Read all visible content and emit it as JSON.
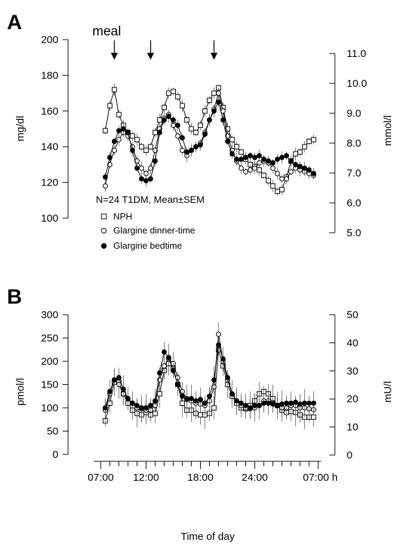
{
  "panels": {
    "a_letter": "A",
    "b_letter": "B"
  },
  "meal_label": "meal",
  "meal_times_h": [
    8.5,
    12.5,
    19.5
  ],
  "legend": {
    "note": "N=24 T1DM,  Mean±SEM",
    "items": [
      {
        "label": "NPH",
        "marker": "open-square"
      },
      {
        "label": "Glargine dinner-time",
        "marker": "open-circle"
      },
      {
        "label": "Glargine bedtime",
        "marker": "filled-circle"
      }
    ]
  },
  "x_axis": {
    "title": "Time of day",
    "range_h": [
      7,
      31
    ],
    "tick_labels": [
      "07:00",
      "12:00",
      "18:00",
      "24:00",
      "07:00 h"
    ],
    "tick_positions_h": [
      7,
      12,
      18,
      24,
      31
    ]
  },
  "colors": {
    "ink": "#000000",
    "error_bar": "#555555"
  },
  "chart_data": [
    {
      "type": "line",
      "panel": "A",
      "ylabel": "mg/dl",
      "ylim": [
        100,
        200
      ],
      "yticks": [
        "100",
        "120",
        "140",
        "160",
        "180",
        "200"
      ],
      "y2label": "mmol/l",
      "y2lim": [
        5.0,
        11.0
      ],
      "y2ticks": [
        "5.0",
        "6.0",
        "7.0",
        "8.0",
        "9.0",
        "10.0",
        "11.0"
      ],
      "x": [
        7.5,
        8,
        8.5,
        9,
        9.5,
        10,
        10.5,
        11,
        11.5,
        12,
        12.5,
        13,
        13.5,
        14,
        14.5,
        15,
        15.5,
        16,
        16.5,
        17,
        17.5,
        18,
        18.5,
        19,
        19.5,
        20,
        20.5,
        21,
        21.5,
        22,
        22.5,
        23,
        23.5,
        24,
        24.5,
        25,
        25.5,
        26,
        26.5,
        27,
        27.5,
        28,
        28.5,
        29,
        29.5,
        30,
        30.5
      ],
      "series": [
        {
          "name": "NPH",
          "marker": "open-square",
          "values": [
            149,
            163,
            172,
            158,
            152,
            148,
            146,
            144,
            140,
            138,
            140,
            148,
            155,
            162,
            170,
            171,
            168,
            163,
            155,
            150,
            148,
            152,
            160,
            166,
            170,
            173,
            162,
            150,
            144,
            140,
            137,
            133,
            130,
            129,
            127,
            124,
            121,
            118,
            115,
            116,
            123,
            132,
            136,
            137,
            140,
            143,
            144
          ]
        },
        {
          "name": "Glargine dinner-time",
          "marker": "open-circle",
          "values": [
            118,
            130,
            138,
            144,
            148,
            146,
            140,
            132,
            128,
            125,
            128,
            138,
            150,
            156,
            158,
            152,
            146,
            138,
            135,
            138,
            140,
            142,
            148,
            155,
            161,
            170,
            160,
            146,
            138,
            132,
            128,
            126,
            127,
            128,
            131,
            132,
            131,
            128,
            125,
            122,
            122,
            126,
            128,
            127,
            126,
            125,
            124
          ]
        },
        {
          "name": "Glargine bedtime",
          "marker": "filled-circle",
          "values": [
            123,
            134,
            143,
            149,
            150,
            148,
            138,
            128,
            122,
            121,
            122,
            132,
            148,
            155,
            157,
            155,
            152,
            145,
            137,
            138,
            140,
            141,
            147,
            155,
            160,
            165,
            155,
            143,
            136,
            133,
            133,
            134,
            135,
            134,
            135,
            133,
            132,
            131,
            133,
            134,
            135,
            132,
            130,
            129,
            128,
            127,
            125
          ]
        }
      ]
    },
    {
      "type": "line",
      "panel": "B",
      "ylabel": "pmol/l",
      "ylim": [
        0,
        300
      ],
      "yticks": [
        "0",
        "50",
        "100",
        "150",
        "200",
        "250",
        "300"
      ],
      "y2label": "mU/l",
      "y2lim": [
        0,
        50
      ],
      "y2ticks": [
        "0",
        "10",
        "20",
        "30",
        "40",
        "50"
      ],
      "x": [
        7.5,
        8,
        8.5,
        9,
        9.5,
        10,
        10.5,
        11,
        11.5,
        12,
        12.5,
        13,
        13.5,
        14,
        14.5,
        15,
        15.5,
        16,
        16.5,
        17,
        17.5,
        18,
        18.5,
        19,
        19.5,
        20,
        20.5,
        21,
        21.5,
        22,
        22.5,
        23,
        23.5,
        24,
        24.5,
        25,
        25.5,
        26,
        26.5,
        27,
        27.5,
        28,
        28.5,
        29,
        29.5,
        30,
        30.5
      ],
      "series": [
        {
          "name": "NPH",
          "marker": "open-square",
          "values": [
            72,
            110,
            155,
            155,
            130,
            110,
            95,
            88,
            85,
            90,
            85,
            88,
            130,
            180,
            195,
            185,
            150,
            110,
            95,
            95,
            88,
            85,
            85,
            88,
            100,
            225,
            190,
            150,
            125,
            110,
            100,
            98,
            105,
            115,
            130,
            135,
            130,
            120,
            105,
            95,
            90,
            92,
            90,
            85,
            80,
            80,
            80
          ]
        },
        {
          "name": "Glargine dinner-time",
          "marker": "open-circle",
          "values": [
            95,
            130,
            160,
            150,
            130,
            120,
            110,
            100,
            98,
            95,
            95,
            105,
            160,
            190,
            205,
            195,
            165,
            135,
            120,
            115,
            110,
            108,
            105,
            115,
            145,
            258,
            200,
            160,
            130,
            115,
            105,
            100,
            98,
            100,
            105,
            115,
            115,
            110,
            105,
            100,
            100,
            105,
            105,
            100,
            100,
            98,
            96
          ]
        },
        {
          "name": "Glargine bedtime",
          "marker": "filled-circle",
          "values": [
            100,
            135,
            160,
            165,
            140,
            120,
            110,
            105,
            100,
            100,
            105,
            115,
            175,
            220,
            208,
            180,
            150,
            125,
            118,
            120,
            115,
            118,
            110,
            125,
            160,
            235,
            205,
            165,
            130,
            115,
            110,
            105,
            100,
            105,
            105,
            110,
            110,
            108,
            105,
            108,
            110,
            110,
            112,
            108,
            110,
            110,
            110
          ]
        }
      ]
    }
  ]
}
